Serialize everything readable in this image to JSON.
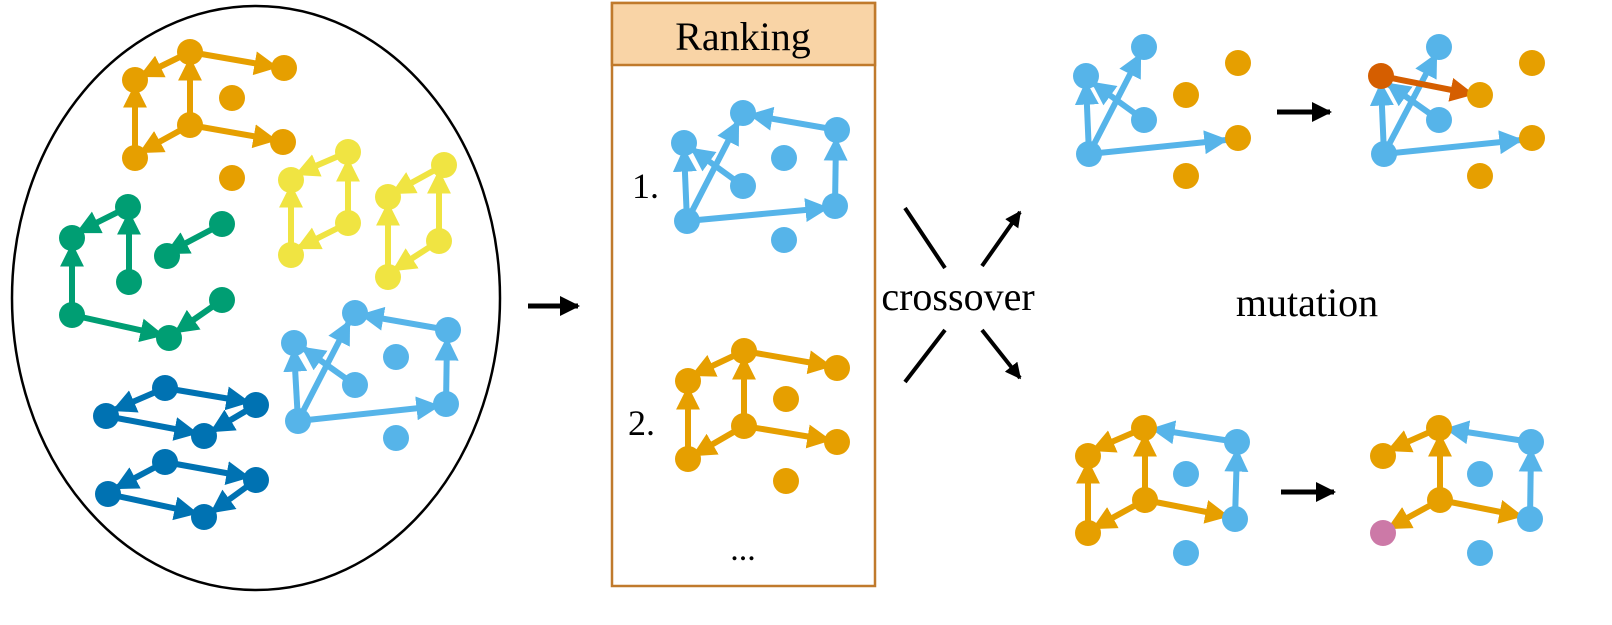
{
  "colors": {
    "orange": "#E69F00",
    "yellow": "#F0E442",
    "green": "#009E73",
    "darkblue": "#0072B2",
    "lightblue": "#56B4E9",
    "vermillion": "#D55E00",
    "pink": "#CC79A7",
    "ranking_header_fill": "#F9D4A6",
    "ranking_border": "#C07A2C"
  },
  "ranking": {
    "title": "Ranking",
    "item1": "1.",
    "item2": "2.",
    "more": "..."
  },
  "labels": {
    "crossover": "crossover",
    "mutation": "mutation"
  }
}
